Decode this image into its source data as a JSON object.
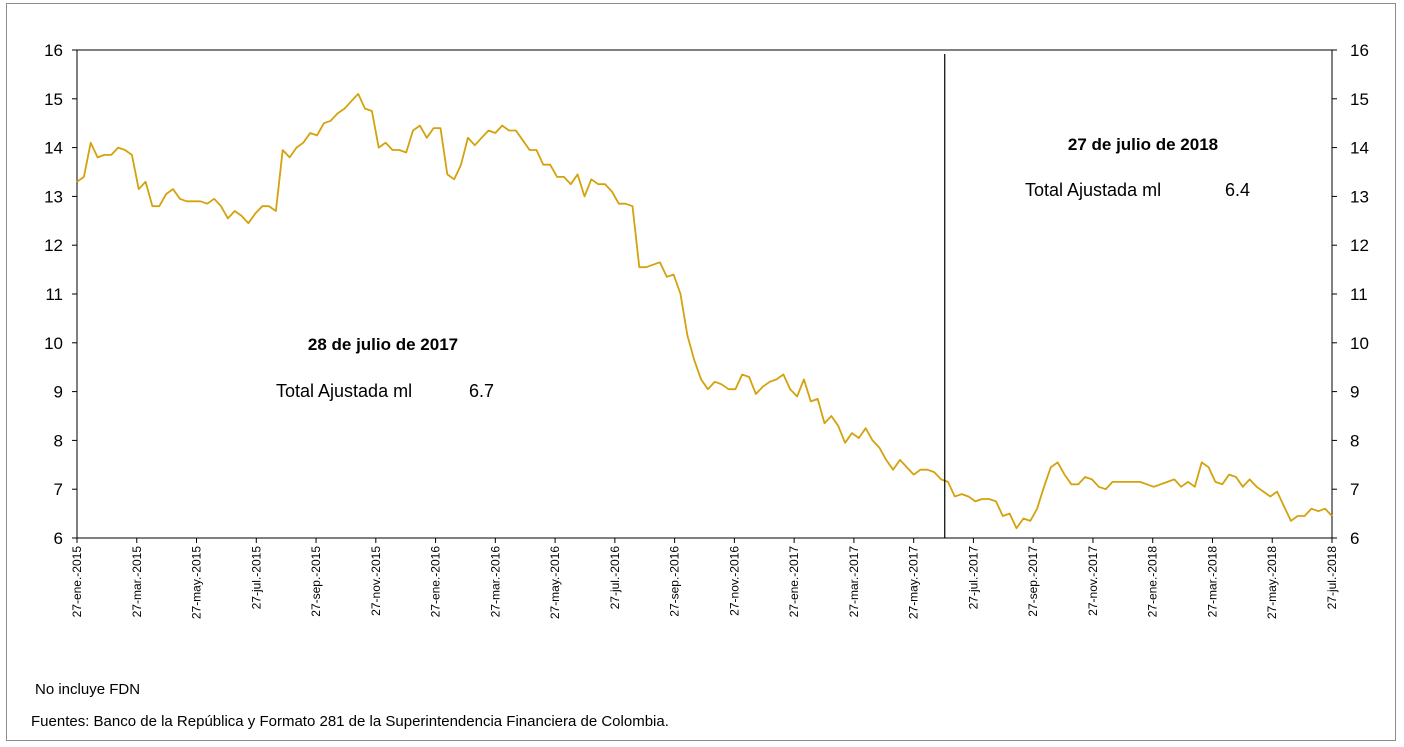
{
  "chart_data": {
    "type": "line",
    "ylim": [
      6,
      16
    ],
    "yticks": [
      6,
      7,
      8,
      9,
      10,
      11,
      12,
      13,
      14,
      15,
      16
    ],
    "xlim": [
      "27-ene.-2015",
      "27-jul.-2018"
    ],
    "xtick_labels": [
      "27-ene.-2015",
      "27-mar.-2015",
      "27-may.-2015",
      "27-jul.-2015",
      "27-sep.-2015",
      "27-nov.-2015",
      "27-ene.-2016",
      "27-mar.-2016",
      "27-may.-2016",
      "27-jul.-2016",
      "27-sep.-2016",
      "27-nov.-2016",
      "27-ene.-2017",
      "27-mar.-2017",
      "27-may.-2017",
      "27-jul.-2017",
      "27-sep.-2017",
      "27-nov.-2017",
      "27-ene.-2018",
      "27-mar.-2018",
      "27-may.-2018",
      "27-jul.-2018"
    ],
    "grid": false,
    "series_color": "#d4a20c",
    "series": [
      {
        "values": [
          13.3,
          13.4,
          14.1,
          13.8,
          13.85,
          13.85,
          14.0,
          13.95,
          13.85,
          13.15,
          13.3,
          12.8,
          12.8,
          13.05,
          13.15,
          12.95,
          12.9,
          12.9,
          12.9,
          12.85,
          12.95,
          12.8,
          12.55,
          12.7,
          12.6,
          12.45,
          12.65,
          12.8,
          12.8,
          12.7,
          13.95,
          13.8,
          14.0,
          14.1,
          14.3,
          14.25,
          14.5,
          14.55,
          14.7,
          14.8,
          14.95,
          15.1,
          14.8,
          14.75,
          14.0,
          14.1,
          13.95,
          13.95,
          13.9,
          14.35,
          14.45,
          14.2,
          14.4,
          14.4,
          13.45,
          13.35,
          13.65,
          14.2,
          14.05,
          14.2,
          14.35,
          14.3,
          14.45,
          14.35,
          14.35,
          14.15,
          13.95,
          13.95,
          13.65,
          13.65,
          13.4,
          13.4,
          13.25,
          13.45,
          13.0,
          13.35,
          13.25,
          13.25,
          13.1,
          12.85,
          12.85,
          12.8,
          11.55,
          11.55,
          11.6,
          11.65,
          11.35,
          11.4,
          11.0,
          10.15,
          9.65,
          9.25,
          9.05,
          9.2,
          9.15,
          9.05,
          9.05,
          9.35,
          9.3,
          8.95,
          9.1,
          9.2,
          9.25,
          9.35,
          9.05,
          8.9,
          9.25,
          8.8,
          8.85,
          8.35,
          8.5,
          8.3,
          7.95,
          8.15,
          8.05,
          8.25,
          8.0,
          7.85,
          7.6,
          7.4,
          7.6,
          7.45,
          7.3,
          7.4,
          7.4,
          7.35,
          7.2,
          7.15,
          6.85,
          6.9,
          6.85,
          6.75,
          6.8,
          6.8,
          6.75,
          6.45,
          6.5,
          6.2,
          6.4,
          6.35,
          6.6,
          7.05,
          7.45,
          7.55,
          7.3,
          7.1,
          7.1,
          7.25,
          7.2,
          7.05,
          7.0,
          7.15,
          7.15,
          7.15,
          7.15,
          7.15,
          7.1,
          7.05,
          7.1,
          7.15,
          7.2,
          7.05,
          7.15,
          7.05,
          7.55,
          7.45,
          7.15,
          7.1,
          7.3,
          7.25,
          7.05,
          7.2,
          7.05,
          6.95,
          6.85,
          6.95,
          6.65,
          6.35,
          6.45,
          6.45,
          6.6,
          6.55,
          6.6,
          6.45
        ]
      }
    ],
    "marker_line_at": "28-jul.-2017",
    "annotations": [
      {
        "title": "28 de julio de 2017",
        "label": "Total  Ajustada  ml",
        "value": "6.7"
      },
      {
        "title": "27 de julio de 2018",
        "label": "Total  Ajustada  ml",
        "value": "6.4"
      }
    ]
  },
  "notes": {
    "note1": "No incluye FDN",
    "sources": "Fuentes: Banco de la República y Formato 281 de la Superintendencia Financiera de Colombia."
  }
}
